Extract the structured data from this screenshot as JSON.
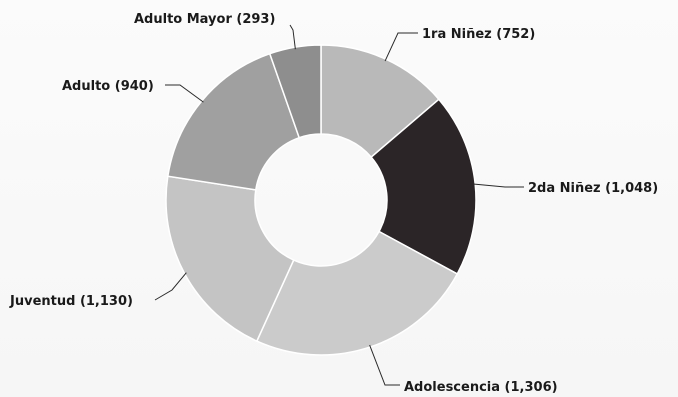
{
  "chart_data": {
    "type": "pie",
    "variant": "donut",
    "title": "",
    "legend": "none",
    "slices": [
      {
        "label": "1ra Niñez",
        "value": 752,
        "display": "1ra Niñez (752)",
        "color": "#b9b9b9"
      },
      {
        "label": "2da Niñez",
        "value": 1048,
        "display": "2da Niñez (1,048)",
        "color": "#2b2527"
      },
      {
        "label": "Adolescencia",
        "value": 1306,
        "display": "Adolescencia (1,306)",
        "color": "#cbcbcb"
      },
      {
        "label": "Juventud",
        "value": 1130,
        "display": "Juventud (1,130)",
        "color": "#c4c4c4"
      },
      {
        "label": "Adulto",
        "value": 940,
        "display": "Adulto (940)",
        "color": "#a0a0a0"
      },
      {
        "label": "Adulto Mayor",
        "value": 293,
        "display": "Adulto Mayor (293)",
        "color": "#8e8e8e"
      }
    ]
  }
}
